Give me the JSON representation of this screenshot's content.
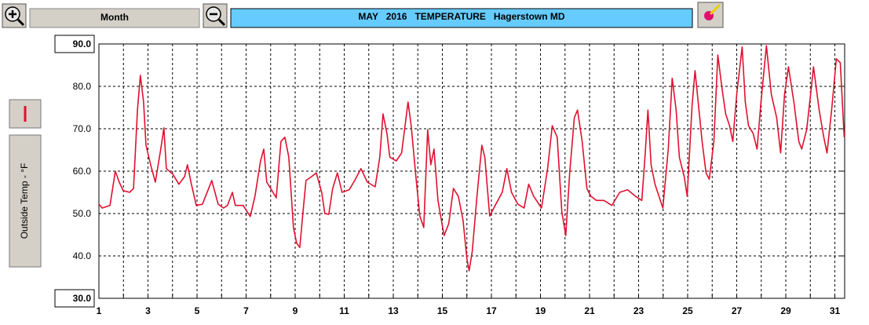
{
  "toolbar": {
    "period": "Month"
  },
  "chart_data": {
    "type": "line",
    "title": "MAY   2016   TEMPERATURE   Hagerstown MD",
    "y_label": "Outside Temp - °F",
    "x": [
      1.0,
      1.13,
      1.45,
      1.67,
      1.83,
      1.99,
      2.25,
      2.41,
      2.57,
      2.69,
      2.82,
      2.92,
      3.11,
      3.3,
      3.52,
      3.65,
      3.75,
      4.01,
      4.26,
      4.49,
      4.61,
      4.77,
      4.97,
      5.22,
      5.6,
      5.86,
      6.08,
      6.24,
      6.44,
      6.56,
      6.88,
      7.17,
      7.36,
      7.59,
      7.72,
      7.84,
      8.0,
      8.23,
      8.42,
      8.58,
      8.74,
      8.93,
      9.06,
      9.19,
      9.32,
      9.44,
      9.67,
      9.86,
      10.08,
      10.21,
      10.37,
      10.53,
      10.72,
      10.91,
      11.2,
      11.43,
      11.68,
      11.94,
      12.26,
      12.45,
      12.58,
      12.74,
      12.86,
      13.12,
      13.34,
      13.6,
      13.73,
      13.92,
      14.08,
      14.24,
      14.4,
      14.53,
      14.66,
      14.82,
      15.07,
      15.26,
      15.45,
      15.65,
      15.84,
      16.0,
      16.09,
      16.22,
      16.41,
      16.61,
      16.73,
      16.93,
      17.18,
      17.44,
      17.63,
      17.82,
      18.08,
      18.33,
      18.52,
      18.72,
      19.04,
      19.29,
      19.48,
      19.68,
      19.87,
      20.03,
      20.19,
      20.38,
      20.51,
      20.7,
      20.89,
      21.05,
      21.28,
      21.59,
      21.91,
      22.23,
      22.55,
      22.87,
      23.13,
      23.26,
      23.38,
      23.51,
      23.67,
      23.83,
      23.99,
      24.21,
      24.37,
      24.53,
      24.66,
      24.86,
      24.98,
      25.18,
      25.3,
      25.43,
      25.59,
      25.75,
      25.88,
      26.07,
      26.23,
      26.39,
      26.55,
      26.71,
      26.84,
      27.0,
      27.22,
      27.35,
      27.48,
      27.67,
      27.83,
      27.99,
      28.21,
      28.41,
      28.63,
      28.79,
      28.95,
      29.11,
      29.33,
      29.53,
      29.65,
      29.85,
      30.01,
      30.13,
      30.36,
      30.55,
      30.68,
      30.87,
      31.06,
      31.22,
      31.38
    ],
    "series": [
      {
        "name": "Outside Temp",
        "color": "#e0102f",
        "values": [
          52.2,
          51.3,
          51.9,
          60.0,
          57.4,
          55.4,
          55.0,
          55.9,
          74.4,
          82.6,
          76.3,
          66.1,
          61.5,
          57.4,
          65.2,
          70.2,
          60.6,
          59.3,
          56.9,
          58.7,
          61.5,
          56.9,
          51.9,
          52.2,
          57.8,
          52.2,
          51.3,
          51.9,
          55.0,
          51.9,
          51.9,
          49.3,
          54.1,
          62.4,
          65.2,
          57.4,
          55.9,
          53.7,
          67.0,
          68.0,
          63.3,
          46.7,
          43.0,
          42.0,
          50.4,
          57.8,
          58.7,
          59.6,
          55.0,
          50.0,
          49.8,
          55.9,
          59.6,
          55.0,
          55.6,
          57.8,
          60.6,
          57.4,
          56.3,
          63.3,
          73.5,
          68.9,
          63.3,
          62.4,
          64.3,
          76.3,
          70.7,
          58.7,
          49.4,
          46.7,
          69.8,
          61.5,
          65.2,
          53.1,
          44.8,
          47.6,
          55.9,
          54.1,
          48.5,
          39.3,
          36.5,
          41.1,
          54.1,
          66.1,
          63.3,
          49.4,
          52.2,
          55.0,
          60.6,
          55.0,
          52.2,
          51.3,
          56.9,
          54.1,
          51.3,
          60.6,
          70.7,
          68.0,
          50.4,
          44.8,
          59.6,
          72.6,
          74.4,
          67.0,
          55.9,
          54.1,
          53.1,
          53.1,
          51.9,
          55.0,
          55.6,
          54.1,
          53.1,
          63.3,
          74.4,
          61.5,
          56.9,
          54.1,
          51.3,
          65.2,
          81.9,
          74.4,
          63.3,
          58.7,
          54.1,
          75.4,
          83.7,
          76.3,
          67.0,
          59.6,
          58.1,
          67.0,
          87.4,
          80.0,
          73.5,
          70.7,
          67.0,
          78.1,
          89.3,
          76.3,
          70.7,
          68.9,
          65.2,
          76.3,
          89.6,
          78.1,
          72.6,
          64.3,
          78.1,
          84.6,
          76.3,
          67.0,
          65.2,
          69.8,
          78.1,
          84.6,
          74.4,
          68.0,
          64.3,
          74.4,
          86.5,
          85.6,
          68.0
        ]
      }
    ],
    "xlim": [
      1,
      31.4
    ],
    "xticks": [
      1,
      3,
      5,
      7,
      9,
      11,
      13,
      15,
      17,
      19,
      21,
      23,
      25,
      27,
      29,
      31
    ],
    "xminor_ticks": [
      2,
      4,
      6,
      8,
      10,
      12,
      14,
      16,
      18,
      20,
      22,
      24,
      26,
      28,
      30
    ],
    "ylim": [
      30,
      90
    ],
    "yticks": [
      {
        "value": 90,
        "label": "90.0"
      },
      {
        "value": 80,
        "label": "80.0"
      },
      {
        "value": 70,
        "label": "70.0"
      },
      {
        "value": 60,
        "label": "60.0"
      },
      {
        "value": 50,
        "label": "50.0"
      },
      {
        "value": 40,
        "label": "40.0"
      },
      {
        "value": 30,
        "label": "30.0"
      }
    ],
    "grid": true
  }
}
